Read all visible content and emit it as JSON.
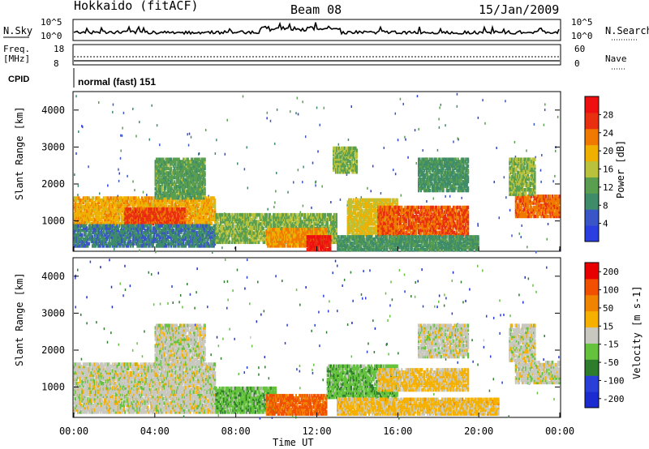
{
  "header": {
    "station": "Hokkaido (fitACF)",
    "beam": "Beam 08",
    "date": "15/Jan/2009"
  },
  "top_panels": {
    "nsky_label": "N.Sky",
    "nsky_ticks": [
      "10^5",
      "10^0"
    ],
    "nsearch_label": "N.Search",
    "nsearch_ticks": [
      "10^5",
      "10^0"
    ],
    "freq_label": "Freq.",
    "freq_unit": "[MHz]",
    "freq_ticks": [
      "18",
      "8"
    ],
    "nave_label": "Nave",
    "nave_ticks": [
      "60",
      "0"
    ],
    "cpid_label": "CPID",
    "cpid_value": "normal (fast) 151"
  },
  "x_axis": {
    "label": "Time UT",
    "ticks": [
      "00:00",
      "04:00",
      "08:00",
      "12:00",
      "16:00",
      "20:00",
      "00:00"
    ]
  },
  "colors": {
    "power_scale": [
      "#2b3fe0",
      "#3a55c8",
      "#3e8c6a",
      "#5a9e50",
      "#b9c23a",
      "#f0b000",
      "#f07a00",
      "#e83010",
      "#ee1010"
    ],
    "velocity_scale": [
      "#1b2bd0",
      "#2a3fd8",
      "#2d7d2d",
      "#64c23c",
      "#c8c8c0",
      "#f5b000",
      "#f08400",
      "#f05000",
      "#e80000"
    ]
  },
  "chart_data": [
    {
      "type": "heatmap",
      "title": "",
      "xlabel": "Time UT",
      "ylabel": "Slant Range [km]",
      "xlim": [
        0,
        24
      ],
      "ylim": [
        180,
        4500
      ],
      "yticks": [
        "1000",
        "2000",
        "3000",
        "4000"
      ],
      "colorbar": {
        "label": "Power [dB]",
        "ticks": [
          "4",
          "8",
          "12",
          "16",
          "20",
          "24",
          "28"
        ],
        "range": [
          0,
          32
        ]
      },
      "regions": [
        {
          "t0": 0.0,
          "t1": 7.0,
          "r0": 900,
          "r1": 1650,
          "value": 20
        },
        {
          "t0": 2.5,
          "t1": 5.5,
          "r0": 900,
          "r1": 1350,
          "value": 26
        },
        {
          "t0": 0.0,
          "t1": 7.0,
          "r0": 300,
          "r1": 900,
          "value": 8
        },
        {
          "t0": 4.0,
          "t1": 6.5,
          "r0": 1600,
          "r1": 2700,
          "value": 12
        },
        {
          "t0": 7.0,
          "t1": 13.0,
          "r0": 400,
          "r1": 1200,
          "value": 14
        },
        {
          "t0": 9.5,
          "t1": 12.5,
          "r0": 300,
          "r1": 800,
          "value": 22
        },
        {
          "t0": 11.5,
          "t1": 12.7,
          "r0": 200,
          "r1": 600,
          "value": 29
        },
        {
          "t0": 12.8,
          "t1": 14.0,
          "r0": 2300,
          "r1": 3000,
          "value": 14
        },
        {
          "t0": 13.5,
          "t1": 16.0,
          "r0": 600,
          "r1": 1600,
          "value": 18
        },
        {
          "t0": 15.0,
          "t1": 19.5,
          "r0": 600,
          "r1": 1400,
          "value": 25
        },
        {
          "t0": 13.0,
          "t1": 20.0,
          "r0": 200,
          "r1": 600,
          "value": 10
        },
        {
          "t0": 17.0,
          "t1": 19.5,
          "r0": 1800,
          "r1": 2700,
          "value": 10
        },
        {
          "t0": 21.8,
          "t1": 24.0,
          "r0": 1100,
          "r1": 1700,
          "value": 24
        },
        {
          "t0": 21.5,
          "t1": 22.8,
          "r0": 1700,
          "r1": 2700,
          "value": 14
        }
      ]
    },
    {
      "type": "heatmap",
      "title": "",
      "xlabel": "Time UT",
      "ylabel": "Slant Range [km]",
      "xlim": [
        0,
        24
      ],
      "ylim": [
        180,
        4500
      ],
      "yticks": [
        "1000",
        "2000",
        "3000",
        "4000"
      ],
      "colorbar": {
        "label": "Velocity [m s-1]",
        "ticks": [
          "200",
          "100",
          "50",
          "15",
          "-15",
          "-50",
          "-100",
          "-200"
        ],
        "range": [
          -250,
          250
        ]
      },
      "regions": [
        {
          "t0": 0.0,
          "t1": 7.0,
          "r0": 900,
          "r1": 1650,
          "value": 0
        },
        {
          "t0": 0.0,
          "t1": 7.0,
          "r0": 300,
          "r1": 900,
          "value": 0
        },
        {
          "t0": 4.0,
          "t1": 6.5,
          "r0": 1600,
          "r1": 2700,
          "value": 0
        },
        {
          "t0": 7.0,
          "t1": 10.0,
          "r0": 300,
          "r1": 1000,
          "value": -60
        },
        {
          "t0": 9.5,
          "t1": 12.5,
          "r0": 250,
          "r1": 800,
          "value": 150
        },
        {
          "t0": 12.5,
          "t1": 16.0,
          "r0": 700,
          "r1": 1600,
          "value": -60
        },
        {
          "t0": 15.0,
          "t1": 19.5,
          "r0": 900,
          "r1": 1500,
          "value": 40
        },
        {
          "t0": 13.0,
          "t1": 21.0,
          "r0": 250,
          "r1": 700,
          "value": 45
        },
        {
          "t0": 17.0,
          "t1": 19.5,
          "r0": 1800,
          "r1": 2700,
          "value": 0
        },
        {
          "t0": 21.8,
          "t1": 24.0,
          "r0": 1100,
          "r1": 1700,
          "value": 0
        },
        {
          "t0": 21.5,
          "t1": 22.8,
          "r0": 1700,
          "r1": 2700,
          "value": 0
        }
      ]
    }
  ]
}
